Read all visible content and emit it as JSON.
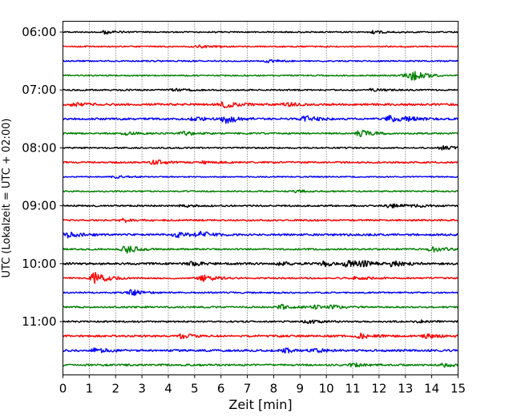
{
  "chart_data": {
    "type": "line",
    "title": "",
    "xlabel": "Zeit  [min]",
    "ylabel": "UTC (Lokalzeit = UTC + 02:00)",
    "x_ticks": [
      0,
      1,
      2,
      3,
      4,
      5,
      6,
      7,
      8,
      9,
      10,
      11,
      12,
      13,
      14,
      15
    ],
    "xlim": [
      0,
      15
    ],
    "grid": "x-dotted",
    "y_ticks": [
      {
        "row": 0,
        "label": "06:00"
      },
      {
        "row": 4,
        "label": "07:00"
      },
      {
        "row": 8,
        "label": "08:00"
      },
      {
        "row": 12,
        "label": "09:00"
      },
      {
        "row": 16,
        "label": "10:00"
      },
      {
        "row": 20,
        "label": "11:00"
      }
    ],
    "row_interval_min": 15,
    "trace_colors": [
      "#000000",
      "#ff0000",
      "#0000ff",
      "#008000"
    ],
    "series": [
      {
        "start": "06:00",
        "noise": 0.8,
        "events": [
          [
            1.6,
            2
          ],
          [
            11.8,
            1.5
          ]
        ]
      },
      {
        "start": "06:15",
        "noise": 0.8,
        "events": [
          [
            5.2,
            1.5
          ]
        ]
      },
      {
        "start": "06:30",
        "noise": 0.8,
        "events": [
          [
            7.8,
            1.5
          ]
        ]
      },
      {
        "start": "06:45",
        "noise": 0.8,
        "events": [
          [
            13.3,
            5
          ],
          [
            13.0,
            2
          ]
        ]
      },
      {
        "start": "07:00",
        "noise": 0.9,
        "events": [
          [
            4.2,
            1.5
          ],
          [
            11.7,
            1.2
          ]
        ]
      },
      {
        "start": "07:15",
        "noise": 1.3,
        "events": [
          [
            0.3,
            2
          ],
          [
            6.1,
            3.5
          ],
          [
            8.5,
            2
          ]
        ]
      },
      {
        "start": "07:30",
        "noise": 1.2,
        "events": [
          [
            6.2,
            5
          ],
          [
            9.2,
            3.5
          ],
          [
            12.4,
            4
          ],
          [
            13.1,
            2
          ],
          [
            5.0,
            2
          ]
        ]
      },
      {
        "start": "07:45",
        "noise": 1.0,
        "events": [
          [
            11.3,
            4
          ],
          [
            4.6,
            2
          ],
          [
            2.4,
            1.5
          ]
        ]
      },
      {
        "start": "08:00",
        "noise": 0.9,
        "events": [
          [
            14.4,
            2
          ]
        ]
      },
      {
        "start": "08:15",
        "noise": 1.0,
        "events": [
          [
            3.5,
            3
          ],
          [
            5.3,
            1.5
          ]
        ]
      },
      {
        "start": "08:30",
        "noise": 0.7,
        "events": [
          [
            2.0,
            1.5
          ]
        ]
      },
      {
        "start": "08:45",
        "noise": 0.8,
        "events": [
          [
            8.9,
            1.5
          ]
        ]
      },
      {
        "start": "09:00",
        "noise": 1.0,
        "events": [
          [
            12.4,
            2.5
          ],
          [
            13.4,
            1.5
          ],
          [
            4.6,
            1.5
          ]
        ]
      },
      {
        "start": "09:15",
        "noise": 1.0,
        "events": [
          [
            2.3,
            2
          ]
        ]
      },
      {
        "start": "09:30",
        "noise": 1.2,
        "events": [
          [
            0.2,
            3
          ],
          [
            4.3,
            3
          ],
          [
            5.2,
            3.5
          ]
        ]
      },
      {
        "start": "09:45",
        "noise": 1.0,
        "events": [
          [
            2.4,
            4.5
          ],
          [
            14.0,
            3
          ]
        ]
      },
      {
        "start": "10:00",
        "noise": 1.3,
        "events": [
          [
            9.9,
            3
          ],
          [
            10.8,
            4
          ],
          [
            11.4,
            2
          ],
          [
            12.5,
            3
          ],
          [
            4.9,
            2
          ],
          [
            8.2,
            2
          ]
        ]
      },
      {
        "start": "10:15",
        "noise": 1.0,
        "events": [
          [
            1.2,
            7
          ],
          [
            5.3,
            4
          ],
          [
            11.1,
            2
          ]
        ]
      },
      {
        "start": "10:30",
        "noise": 0.9,
        "events": [
          [
            2.6,
            3.5
          ]
        ]
      },
      {
        "start": "10:45",
        "noise": 1.0,
        "events": [
          [
            8.3,
            2.5
          ],
          [
            9.6,
            2
          ],
          [
            10.2,
            2
          ]
        ]
      },
      {
        "start": "11:00",
        "noise": 1.0,
        "events": [
          [
            9.3,
            2
          ],
          [
            13.5,
            1.5
          ]
        ]
      },
      {
        "start": "11:15",
        "noise": 1.2,
        "events": [
          [
            4.5,
            2.5
          ],
          [
            11.3,
            2.5
          ],
          [
            13.8,
            2
          ]
        ]
      },
      {
        "start": "11:30",
        "noise": 1.3,
        "events": [
          [
            1.2,
            2.5
          ],
          [
            8.5,
            2.5
          ],
          [
            9.6,
            2
          ]
        ]
      },
      {
        "start": "11:45",
        "noise": 1.1,
        "events": [
          [
            11.0,
            2
          ],
          [
            14.5,
            2
          ]
        ]
      }
    ]
  }
}
